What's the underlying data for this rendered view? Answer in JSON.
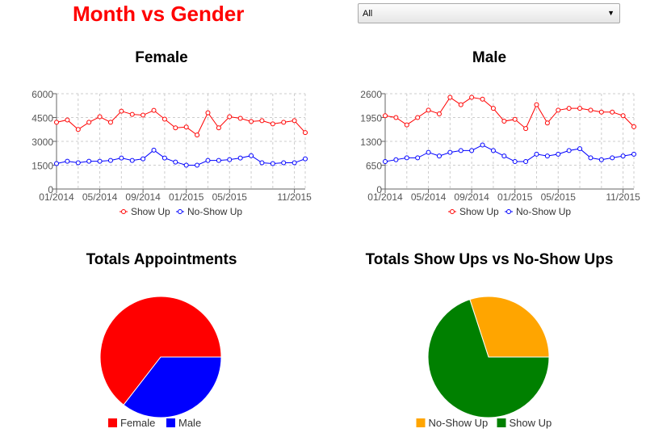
{
  "page": {
    "title": "Month vs Gender",
    "filter": {
      "selected": "All",
      "arrow_icon": "triangle-down"
    }
  },
  "colors": {
    "title": "#ff0000",
    "show_up_line": "#ff0000",
    "no_show_line": "#0000ff",
    "female": "#ff0000",
    "male": "#0000ff",
    "no_show_pie": "#ffa500",
    "show_pie": "#008000"
  },
  "chart_data": [
    {
      "type": "line",
      "title": "Female",
      "x_tick_labels": [
        "01/2014",
        "05/2014",
        "09/2014",
        "01/2015",
        "05/2015",
        "11/2015"
      ],
      "x_start": "01/2014",
      "x_end": "12/2015",
      "ylim": [
        0,
        6000
      ],
      "yticks": [
        0,
        1500,
        3000,
        4500,
        6000
      ],
      "grid": true,
      "legend_position": "bottom",
      "series": [
        {
          "name": "Show Up",
          "color": "#ff0000",
          "values": [
            4200,
            4350,
            3750,
            4200,
            4550,
            4200,
            4900,
            4700,
            4650,
            4950,
            4400,
            3850,
            3900,
            3400,
            4800,
            3850,
            4550,
            4450,
            4250,
            4300,
            4100,
            4200,
            4300,
            3550
          ]
        },
        {
          "name": "No-Show Up",
          "color": "#0000ff",
          "values": [
            1600,
            1750,
            1650,
            1750,
            1750,
            1800,
            1950,
            1800,
            1900,
            2450,
            1950,
            1700,
            1500,
            1500,
            1800,
            1800,
            1850,
            1950,
            2100,
            1650,
            1600,
            1650,
            1650,
            1900
          ]
        }
      ]
    },
    {
      "type": "line",
      "title": "Male",
      "x_tick_labels": [
        "01/2014",
        "05/2014",
        "09/2014",
        "01/2015",
        "05/2015",
        "11/2015"
      ],
      "x_start": "01/2014",
      "x_end": "12/2015",
      "ylim": [
        0,
        2600
      ],
      "yticks": [
        0,
        650,
        1300,
        1950,
        2600
      ],
      "grid": true,
      "legend_position": "bottom",
      "series": [
        {
          "name": "Show Up",
          "color": "#ff0000",
          "values": [
            2000,
            1950,
            1750,
            1950,
            2150,
            2050,
            2500,
            2300,
            2500,
            2450,
            2200,
            1850,
            1900,
            1650,
            2300,
            1800,
            2150,
            2200,
            2200,
            2150,
            2100,
            2100,
            2000,
            1700
          ]
        },
        {
          "name": "No-Show Up",
          "color": "#0000ff",
          "values": [
            750,
            800,
            850,
            850,
            1000,
            900,
            1000,
            1050,
            1050,
            1200,
            1050,
            900,
            750,
            750,
            950,
            900,
            950,
            1050,
            1100,
            850,
            800,
            850,
            900,
            950
          ]
        }
      ]
    },
    {
      "type": "pie",
      "title": "Totals Appointments",
      "legend_position": "bottom",
      "slices": [
        {
          "name": "Female",
          "value": 64.5,
          "color": "#ff0000"
        },
        {
          "name": "Male",
          "value": 35.5,
          "color": "#0000ff"
        }
      ]
    },
    {
      "type": "pie",
      "title": "Totals Show Ups vs No-Show Ups",
      "legend_position": "bottom",
      "slices": [
        {
          "name": "No-Show Up",
          "value": 30,
          "color": "#ffa500"
        },
        {
          "name": "Show Up",
          "value": 70,
          "color": "#008000"
        }
      ]
    }
  ]
}
